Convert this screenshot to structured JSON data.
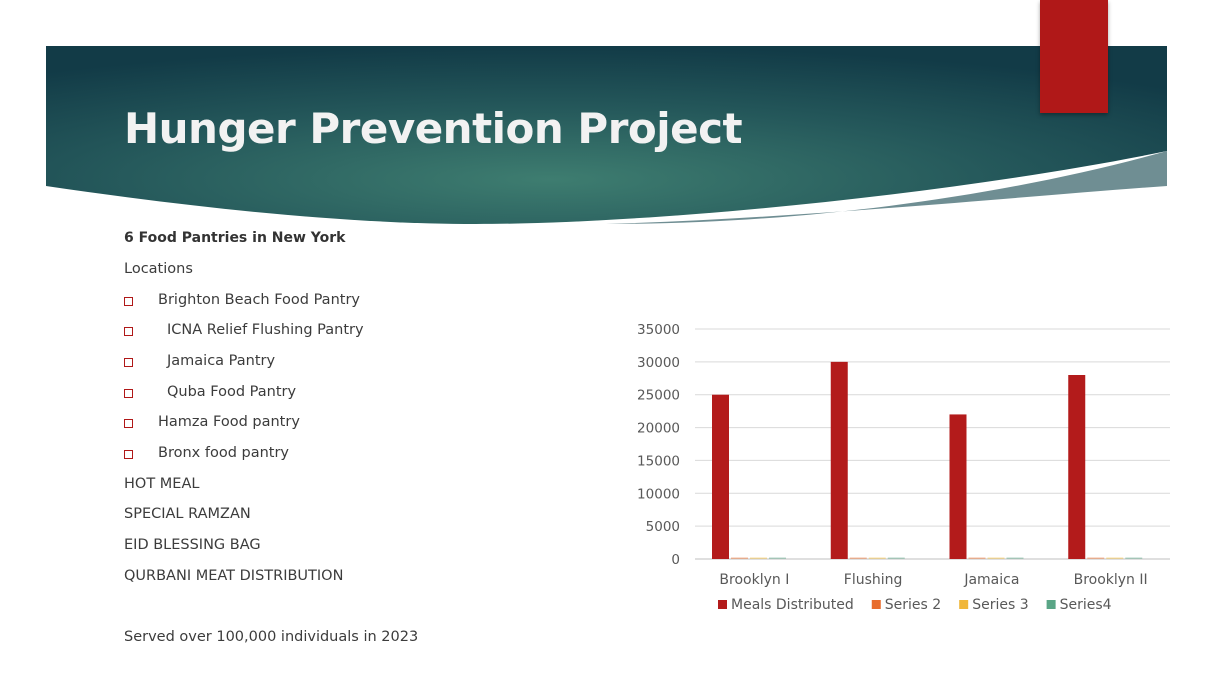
{
  "slide": {
    "title": "Hunger Prevention Project",
    "heading": "6 Food Pantries in New York",
    "locations_label": "Locations",
    "pantries": [
      "Brighton Beach Food Pantry",
      "ICNA Relief Flushing Pantry",
      "Jamaica Pantry",
      "Quba Food Pantry",
      "Hamza Food pantry",
      "Bronx food pantry"
    ],
    "programs": [
      "HOT MEAL",
      "SPECIAL RAMZAN",
      "EID BLESSING BAG",
      "QURBANI MEAT DISTRIBUTION"
    ],
    "footer": "Served over 100,000 individuals in 2023"
  },
  "colors": {
    "banner_dark": "#13404a",
    "banner_light": "#3c7a6e",
    "accent_red": "#b01818",
    "text": "#3c3c3c"
  },
  "chart_data": {
    "type": "bar",
    "categories": [
      "Brooklyn I",
      "Flushing",
      "Jamaica",
      "Brooklyn II"
    ],
    "series": [
      {
        "name": "Meals Distributed",
        "color": "#b31b1b",
        "values": [
          25000,
          30000,
          22000,
          28000
        ]
      },
      {
        "name": "Series 2",
        "color": "#e86c2c",
        "values": [
          0,
          0,
          0,
          0
        ]
      },
      {
        "name": "Series 3",
        "color": "#f0b73a",
        "values": [
          0,
          0,
          0,
          0
        ]
      },
      {
        "name": "Series4",
        "color": "#5aa586",
        "values": [
          0,
          0,
          0,
          0
        ]
      }
    ],
    "yticks": [
      0,
      5000,
      10000,
      15000,
      20000,
      25000,
      30000,
      35000
    ],
    "ylim": [
      0,
      35000
    ],
    "grid": true,
    "legend": "bottom"
  }
}
